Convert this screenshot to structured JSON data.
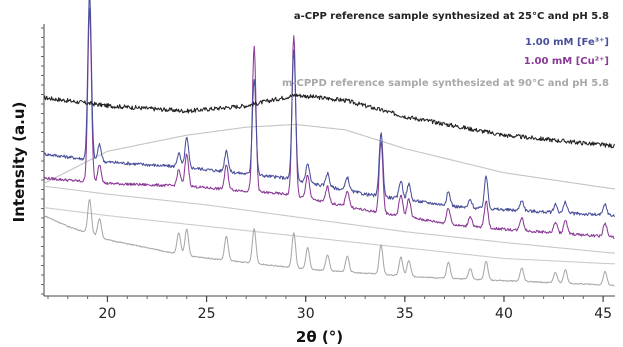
{
  "chart_data": {
    "type": "line",
    "xlabel": "2θ (°)",
    "ylabel": "Intensity (a.u)",
    "xlim": [
      16.8,
      45.6
    ],
    "x_ticks": [
      20,
      25,
      30,
      35,
      40,
      45
    ],
    "grid": false,
    "legend_position": "top-right",
    "series": [
      {
        "name": "a-CPP  reference sample synthesized at 25°C and pH 5.8",
        "color": "#222222",
        "baseline": [
          [
            16.8,
            0.74
          ],
          [
            20,
            0.71
          ],
          [
            24,
            0.69
          ],
          [
            27,
            0.71
          ],
          [
            29.5,
            0.75
          ],
          [
            32,
            0.73
          ],
          [
            35,
            0.67
          ],
          [
            40,
            0.6
          ],
          [
            45.5,
            0.56
          ]
        ],
        "noise": 0.008,
        "peaks": []
      },
      {
        "name": "1.00 mM [Fe³⁺]",
        "color": "#4a4f9a",
        "baseline": [
          [
            16.8,
            0.53
          ],
          [
            20,
            0.5
          ],
          [
            24,
            0.48
          ],
          [
            29,
            0.44
          ],
          [
            33,
            0.38
          ],
          [
            38,
            0.33
          ],
          [
            45.5,
            0.3
          ]
        ],
        "noise": 0.006,
        "peaks": [
          [
            19.1,
            0.62
          ],
          [
            19.6,
            0.06
          ],
          [
            23.6,
            0.05
          ],
          [
            24.0,
            0.11
          ],
          [
            26.0,
            0.08
          ],
          [
            27.4,
            0.36
          ],
          [
            29.4,
            0.48
          ],
          [
            30.1,
            0.07
          ],
          [
            31.1,
            0.05
          ],
          [
            32.1,
            0.05
          ],
          [
            33.8,
            0.24
          ],
          [
            34.8,
            0.07
          ],
          [
            35.2,
            0.06
          ],
          [
            37.2,
            0.05
          ],
          [
            38.3,
            0.03
          ],
          [
            39.1,
            0.12
          ],
          [
            40.9,
            0.04
          ],
          [
            42.6,
            0.03
          ],
          [
            43.1,
            0.04
          ],
          [
            45.1,
            0.04
          ]
        ]
      },
      {
        "name": "1.00 mM [Cu²⁺]",
        "color": "#8a3a96",
        "baseline": [
          [
            16.8,
            0.44
          ],
          [
            20,
            0.42
          ],
          [
            24,
            0.41
          ],
          [
            29,
            0.38
          ],
          [
            33,
            0.32
          ],
          [
            38,
            0.26
          ],
          [
            45.5,
            0.22
          ]
        ],
        "noise": 0.005,
        "peaks": [
          [
            19.1,
            0.65
          ],
          [
            19.6,
            0.07
          ],
          [
            23.6,
            0.06
          ],
          [
            24.0,
            0.12
          ],
          [
            26.0,
            0.09
          ],
          [
            27.4,
            0.54
          ],
          [
            29.4,
            0.6
          ],
          [
            30.1,
            0.09
          ],
          [
            31.1,
            0.06
          ],
          [
            32.1,
            0.06
          ],
          [
            33.8,
            0.27
          ],
          [
            34.8,
            0.08
          ],
          [
            35.2,
            0.07
          ],
          [
            37.2,
            0.06
          ],
          [
            38.3,
            0.04
          ],
          [
            39.1,
            0.1
          ],
          [
            40.9,
            0.05
          ],
          [
            42.6,
            0.04
          ],
          [
            43.1,
            0.05
          ],
          [
            45.1,
            0.05
          ]
        ]
      },
      {
        "name": "m-CPPD  reference sample synthesized at 90°C and pH 5.8",
        "color": "#a8a8a8",
        "baseline": [
          [
            16.8,
            0.3
          ],
          [
            18,
            0.26
          ],
          [
            20,
            0.21
          ],
          [
            24,
            0.15
          ],
          [
            30,
            0.1
          ],
          [
            36,
            0.07
          ],
          [
            45.5,
            0.04
          ]
        ],
        "noise": 0.002,
        "peaks": [
          [
            19.1,
            0.13
          ],
          [
            19.6,
            0.07
          ],
          [
            23.6,
            0.08
          ],
          [
            24.0,
            0.1
          ],
          [
            26.0,
            0.09
          ],
          [
            27.4,
            0.13
          ],
          [
            29.4,
            0.13
          ],
          [
            30.1,
            0.08
          ],
          [
            31.1,
            0.06
          ],
          [
            32.1,
            0.06
          ],
          [
            33.8,
            0.11
          ],
          [
            34.8,
            0.07
          ],
          [
            35.2,
            0.06
          ],
          [
            37.2,
            0.06
          ],
          [
            38.3,
            0.04
          ],
          [
            39.1,
            0.07
          ],
          [
            40.9,
            0.05
          ],
          [
            42.6,
            0.04
          ],
          [
            43.1,
            0.05
          ],
          [
            45.1,
            0.05
          ]
        ]
      }
    ],
    "reference_curves": [
      {
        "color": "#c4c4c4",
        "points": [
          [
            16.8,
            0.42
          ],
          [
            20,
            0.54
          ],
          [
            24,
            0.6
          ],
          [
            27,
            0.63
          ],
          [
            29.5,
            0.64
          ],
          [
            32,
            0.62
          ],
          [
            35,
            0.55
          ],
          [
            40,
            0.46
          ],
          [
            45.5,
            0.4
          ]
        ]
      },
      {
        "color": "#c8c8c8",
        "points": [
          [
            16.8,
            0.41
          ],
          [
            20,
            0.38
          ],
          [
            25,
            0.34
          ],
          [
            30,
            0.29
          ],
          [
            35,
            0.24
          ],
          [
            40,
            0.2
          ],
          [
            45.5,
            0.16
          ]
        ]
      },
      {
        "color": "#cccccc",
        "points": [
          [
            16.8,
            0.33
          ],
          [
            20,
            0.3
          ],
          [
            25,
            0.26
          ],
          [
            30,
            0.22
          ],
          [
            35,
            0.18
          ],
          [
            40,
            0.14
          ],
          [
            45.5,
            0.12
          ]
        ]
      }
    ]
  }
}
